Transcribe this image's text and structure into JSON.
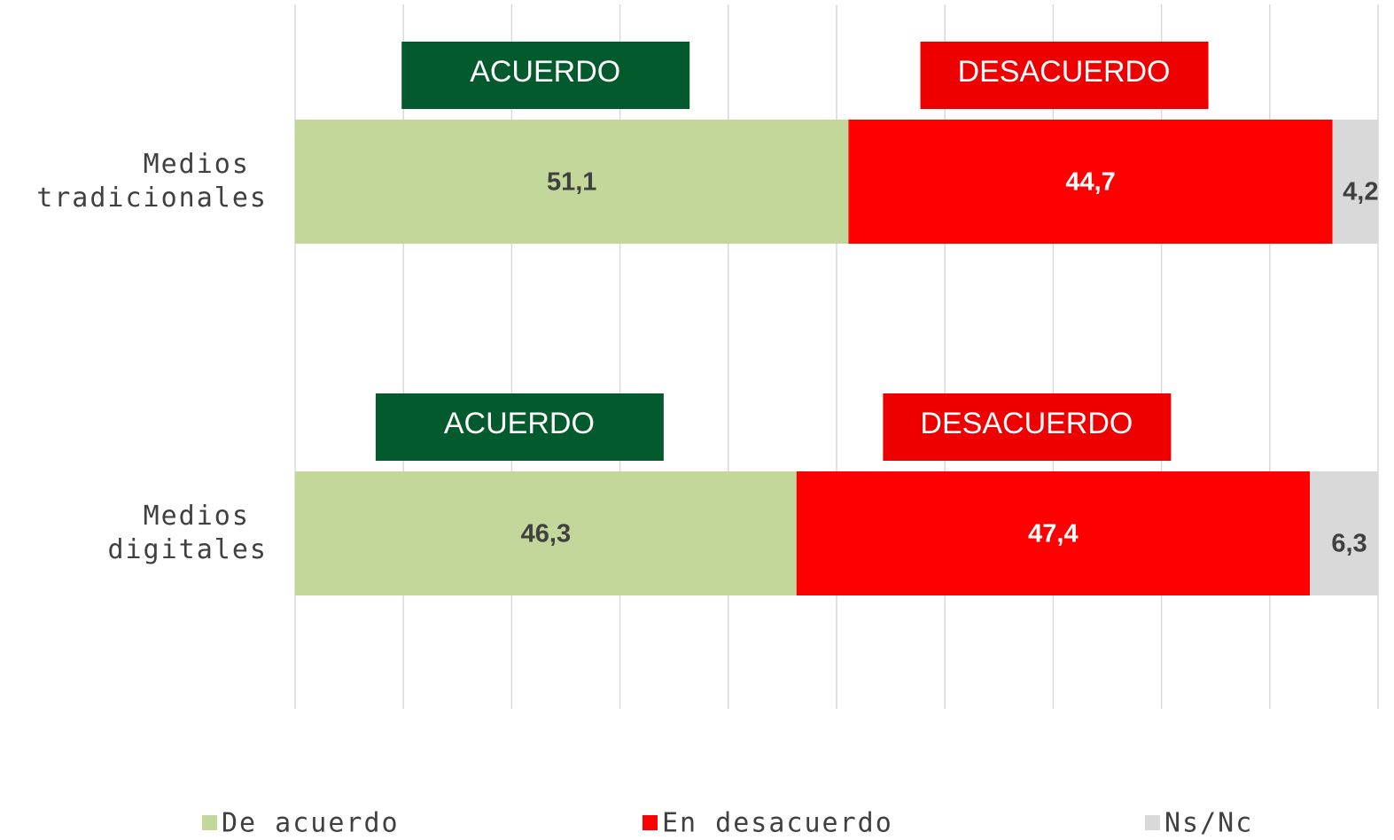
{
  "chart_data": {
    "type": "stacked_bar_horizontal",
    "categories": [
      "Medios tradicionales",
      "Medios digitales"
    ],
    "series": [
      {
        "name": "De acuerdo",
        "color": "#c4d79b",
        "values": [
          51.1,
          46.3
        ],
        "value_labels": [
          "51,1",
          "46,3"
        ]
      },
      {
        "name": "En desacuerdo",
        "color": "#ff0000",
        "values": [
          44.7,
          47.4
        ],
        "value_labels": [
          "44,7",
          "47,4"
        ]
      },
      {
        "name": "Ns/Nc",
        "color": "#d9d9d9",
        "values": [
          4.2,
          6.3
        ],
        "value_labels": [
          "4,2",
          "6,3"
        ]
      }
    ],
    "annotations": [
      "ACUERDO",
      "DESACUERDO",
      "ACUERDO",
      "DESACUERDO"
    ],
    "xlim": [
      0,
      100
    ],
    "xticks": [
      0,
      10,
      20,
      30,
      40,
      50,
      60,
      70,
      80,
      90,
      100
    ],
    "grid": true,
    "legend": "bottom"
  }
}
